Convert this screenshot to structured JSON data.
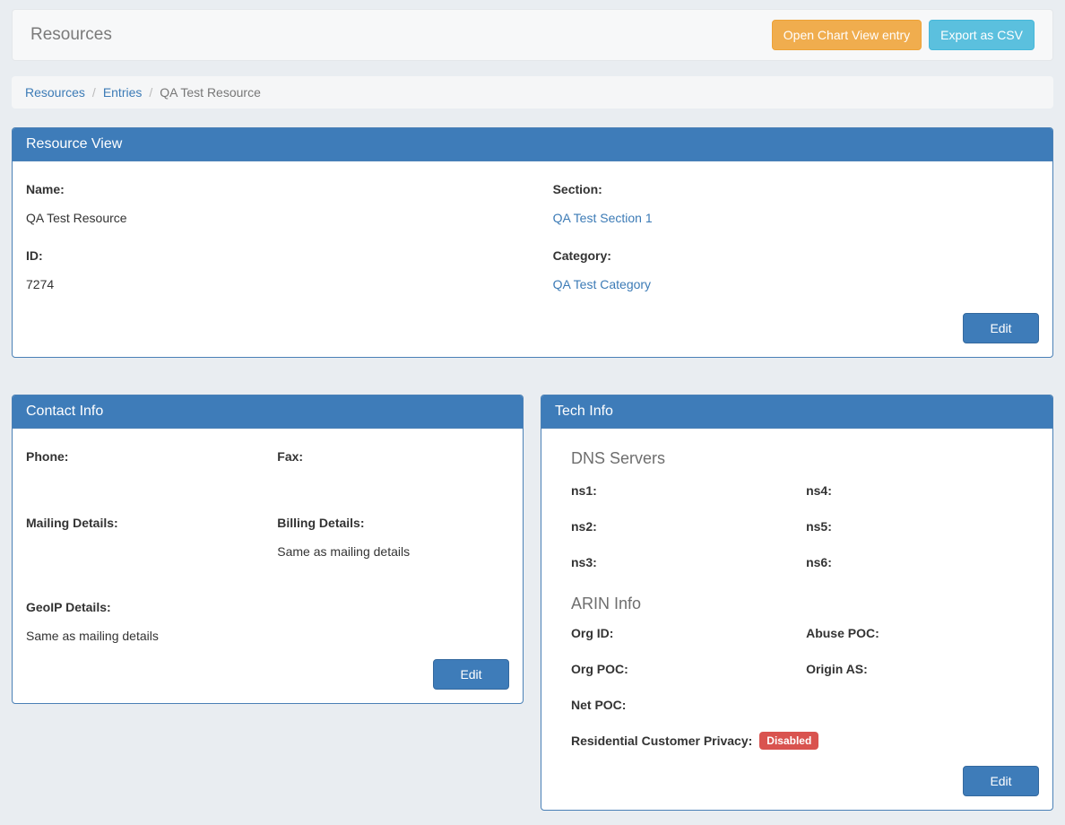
{
  "page": {
    "title": "Resources"
  },
  "toolbar": {
    "open_chart_label": "Open Chart View entry",
    "export_csv_label": "Export as CSV"
  },
  "breadcrumb": {
    "resources": "Resources",
    "entries": "Entries",
    "current": "QA Test Resource",
    "separator": "/"
  },
  "resource_view": {
    "title": "Resource View",
    "name_label": "Name:",
    "name_value": "QA Test Resource",
    "id_label": "ID:",
    "id_value": "7274",
    "section_label": "Section:",
    "section_value": "QA Test Section 1",
    "category_label": "Category:",
    "category_value": "QA Test Category",
    "edit_label": "Edit"
  },
  "contact_info": {
    "title": "Contact Info",
    "phone_label": "Phone:",
    "phone_value": "",
    "fax_label": "Fax:",
    "fax_value": "",
    "mailing_label": "Mailing Details:",
    "mailing_value": "",
    "billing_label": "Billing Details:",
    "billing_value": "Same as mailing details",
    "geoip_label": "GeoIP Details:",
    "geoip_value": "Same as mailing details",
    "edit_label": "Edit"
  },
  "tech_info": {
    "title": "Tech Info",
    "dns_heading": "DNS Servers",
    "dns_labels": [
      "ns1:",
      "ns2:",
      "ns3:",
      "ns4:",
      "ns5:",
      "ns6:"
    ],
    "arin_heading": "ARIN Info",
    "org_id_label": "Org ID:",
    "abuse_poc_label": "Abuse POC:",
    "org_poc_label": "Org POC:",
    "origin_as_label": "Origin AS:",
    "net_poc_label": "Net POC:",
    "privacy_label": "Residential Customer Privacy:",
    "privacy_status": "Disabled",
    "edit_label": "Edit"
  },
  "colors": {
    "panel_header_blue": "#3e7cb9",
    "panel_border_blue": "#4a80b6",
    "warning_orange": "#f0ad4e",
    "info_light_blue": "#5bc0de",
    "danger_red": "#d9534f",
    "link_blue": "#3c7bb6",
    "page_background": "#e9edf1"
  }
}
